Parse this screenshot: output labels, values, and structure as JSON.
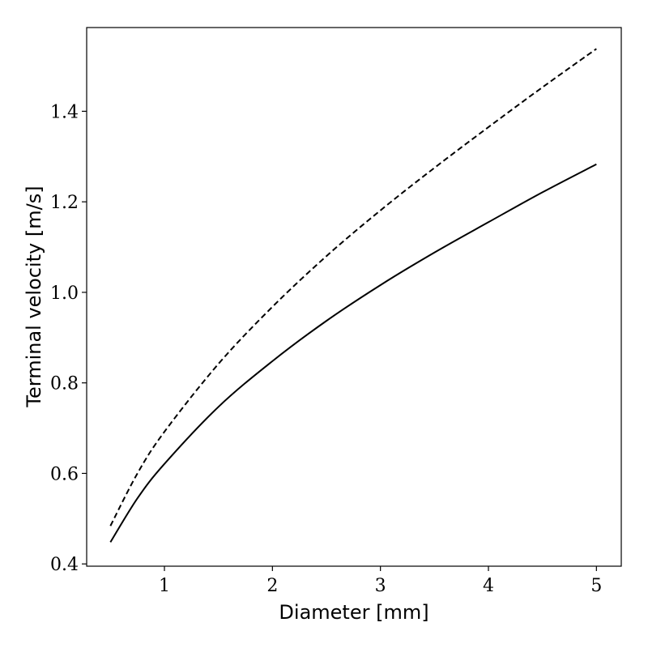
{
  "chart_data": {
    "type": "line",
    "xlabel": "Diameter [mm]",
    "ylabel": "Terminal velocity [m/s]",
    "xlim": [
      0.28,
      5.23
    ],
    "ylim": [
      0.395,
      1.585
    ],
    "xticks": [
      1,
      2,
      3,
      4,
      5
    ],
    "xtick_labels": [
      "1",
      "2",
      "3",
      "4",
      "5"
    ],
    "yticks": [
      0.4,
      0.6,
      0.8,
      1.0,
      1.2,
      1.4
    ],
    "ytick_labels": [
      "0.4",
      "0.6",
      "0.8",
      "1.0",
      "1.2",
      "1.4"
    ],
    "grid": false,
    "legend": "none",
    "series": [
      {
        "style": "solid",
        "color": "#000000",
        "x": [
          0.5,
          0.75,
          1.0,
          1.5,
          2.0,
          2.5,
          3.0,
          3.5,
          4.0,
          4.5,
          5.0
        ],
        "y": [
          0.448,
          0.545,
          0.621,
          0.747,
          0.848,
          0.937,
          1.016,
          1.088,
          1.155,
          1.221,
          1.283
        ]
      },
      {
        "style": "dashed",
        "color": "#000000",
        "x": [
          0.5,
          0.75,
          1.0,
          1.5,
          2.0,
          2.5,
          3.0,
          3.5,
          4.0,
          4.5,
          5.0
        ],
        "y": [
          0.484,
          0.6,
          0.692,
          0.842,
          0.968,
          1.08,
          1.181,
          1.275,
          1.365,
          1.453,
          1.538
        ]
      }
    ]
  }
}
